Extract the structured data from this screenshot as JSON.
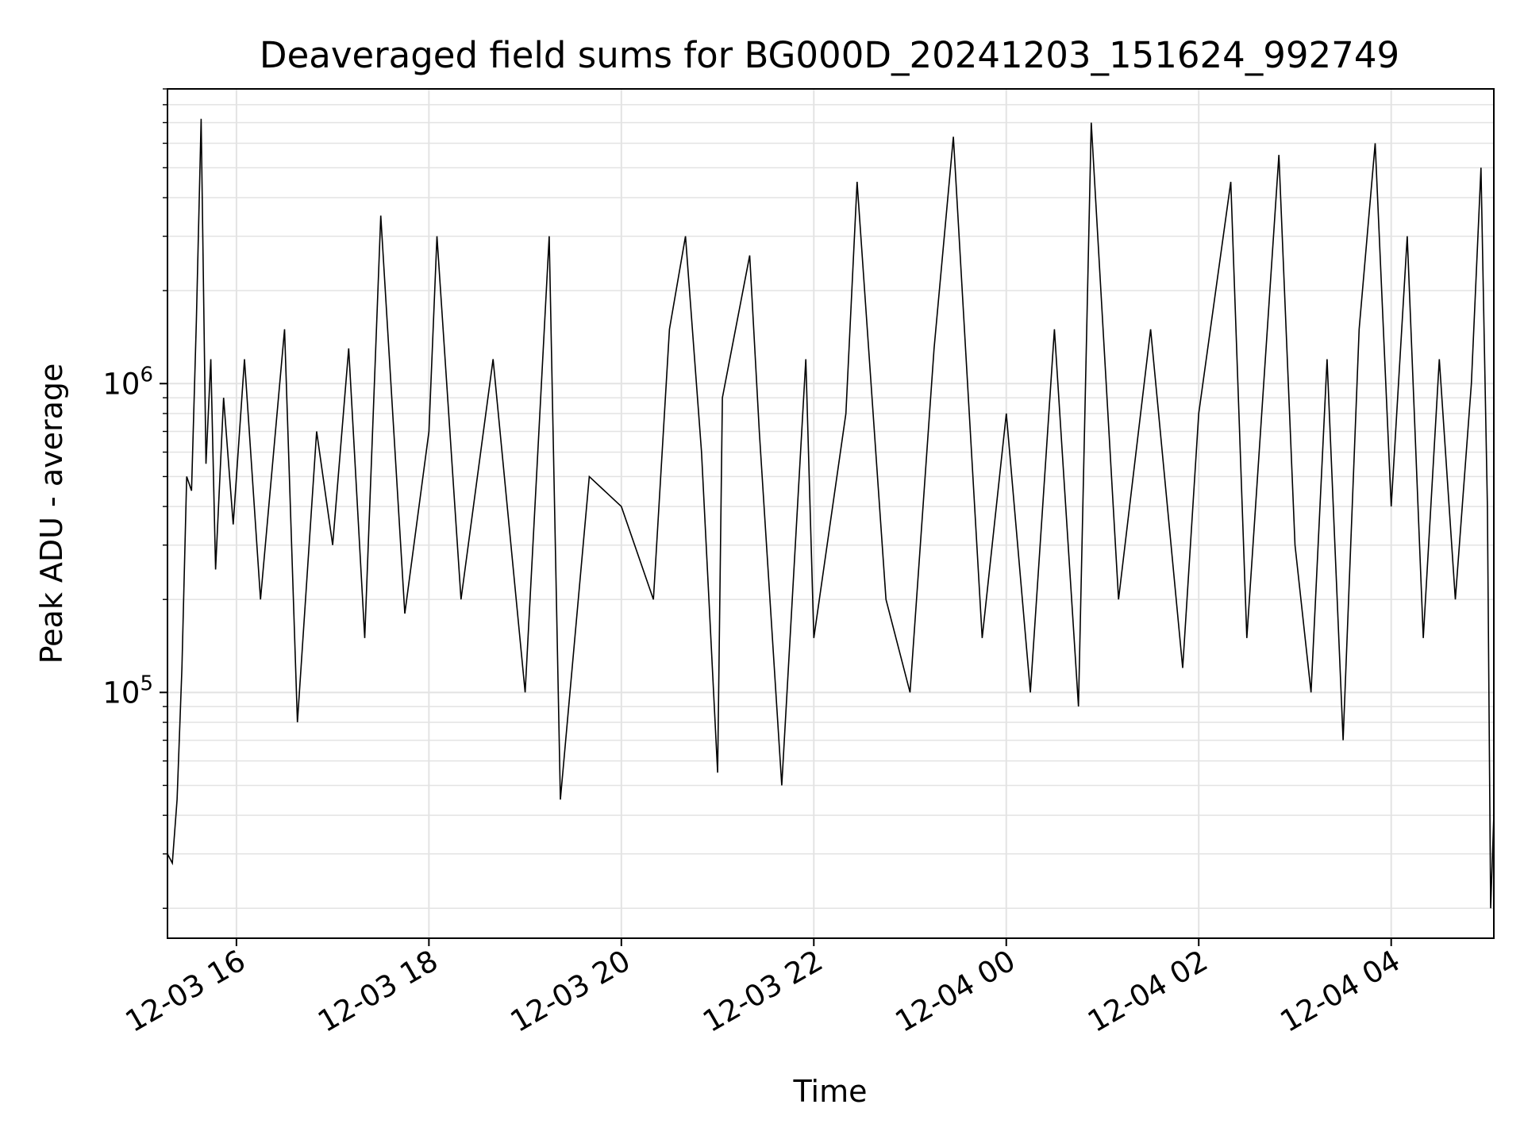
{
  "chart_data": {
    "type": "line",
    "title": "Deaveraged field sums for BG000D_20241203_151624_992749",
    "xlabel": "Time",
    "ylabel": "Peak ADU - average",
    "yscale": "log",
    "xlim": [
      "2024-12-03 15:17",
      "2024-12-04 05:04"
    ],
    "ylim": [
      16000,
      9000000
    ],
    "x_ticks": [
      {
        "label": "12-03 16",
        "time": "2024-12-03 16:00"
      },
      {
        "label": "12-03 18",
        "time": "2024-12-03 18:00"
      },
      {
        "label": "12-03 20",
        "time": "2024-12-03 20:00"
      },
      {
        "label": "12-03 22",
        "time": "2024-12-03 22:00"
      },
      {
        "label": "12-04 00",
        "time": "2024-12-04 00:00"
      },
      {
        "label": "12-04 02",
        "time": "2024-12-04 02:00"
      },
      {
        "label": "12-04 04",
        "time": "2024-12-04 04:00"
      }
    ],
    "y_ticks": [
      {
        "base": "10",
        "exp": "5",
        "value": 100000
      },
      {
        "base": "10",
        "exp": "6",
        "value": 1000000
      }
    ],
    "grid": true,
    "line_color": "#000000",
    "series": [
      {
        "x": [
          "2024-12-03 15:17",
          "2024-12-03 15:20",
          "2024-12-03 15:23",
          "2024-12-03 15:26",
          "2024-12-03 15:29",
          "2024-12-03 15:32",
          "2024-12-03 15:35",
          "2024-12-03 15:38",
          "2024-12-03 15:41",
          "2024-12-03 15:44",
          "2024-12-03 15:47",
          "2024-12-03 15:52",
          "2024-12-03 15:58",
          "2024-12-03 16:05",
          "2024-12-03 16:15",
          "2024-12-03 16:30",
          "2024-12-03 16:38",
          "2024-12-03 16:50",
          "2024-12-03 17:00",
          "2024-12-03 17:10",
          "2024-12-03 17:20",
          "2024-12-03 17:30",
          "2024-12-03 17:45",
          "2024-12-03 18:00",
          "2024-12-03 18:05",
          "2024-12-03 18:20",
          "2024-12-03 18:40",
          "2024-12-03 19:00",
          "2024-12-03 19:15",
          "2024-12-03 19:22",
          "2024-12-03 19:40",
          "2024-12-03 20:00",
          "2024-12-03 20:20",
          "2024-12-03 20:30",
          "2024-12-03 20:40",
          "2024-12-03 20:50",
          "2024-12-03 21:00",
          "2024-12-03 21:03",
          "2024-12-03 21:20",
          "2024-12-03 21:26",
          "2024-12-03 21:40",
          "2024-12-03 21:55",
          "2024-12-03 22:00",
          "2024-12-03 22:20",
          "2024-12-03 22:27",
          "2024-12-03 22:45",
          "2024-12-03 23:00",
          "2024-12-03 23:15",
          "2024-12-03 23:27",
          "2024-12-03 23:45",
          "2024-12-04 00:00",
          "2024-12-04 00:15",
          "2024-12-04 00:30",
          "2024-12-04 00:45",
          "2024-12-04 00:53",
          "2024-12-04 01:10",
          "2024-12-04 01:30",
          "2024-12-04 01:50",
          "2024-12-04 02:00",
          "2024-12-04 02:20",
          "2024-12-04 02:30",
          "2024-12-04 02:50",
          "2024-12-04 03:00",
          "2024-12-04 03:10",
          "2024-12-04 03:20",
          "2024-12-04 03:30",
          "2024-12-04 03:40",
          "2024-12-04 03:50",
          "2024-12-04 04:00",
          "2024-12-04 04:10",
          "2024-12-04 04:20",
          "2024-12-04 04:30",
          "2024-12-04 04:40",
          "2024-12-04 04:50",
          "2024-12-04 04:56",
          "2024-12-04 05:00",
          "2024-12-04 05:02",
          "2024-12-04 05:04"
        ],
        "values": [
          30000,
          28000,
          45000,
          120000,
          500000,
          450000,
          1600000,
          7200000,
          550000,
          1200000,
          250000,
          900000,
          350000,
          1200000,
          200000,
          1500000,
          80000,
          700000,
          300000,
          1300000,
          150000,
          3500000,
          180000,
          700000,
          3000000,
          200000,
          1200000,
          100000,
          3000000,
          45000,
          500000,
          400000,
          200000,
          1500000,
          3000000,
          600000,
          55000,
          900000,
          2600000,
          700000,
          50000,
          1200000,
          150000,
          800000,
          4500000,
          200000,
          100000,
          1300000,
          6300000,
          150000,
          800000,
          100000,
          1500000,
          90000,
          7000000,
          200000,
          1500000,
          120000,
          800000,
          4500000,
          150000,
          5500000,
          300000,
          100000,
          1200000,
          70000,
          1500000,
          6000000,
          400000,
          3000000,
          150000,
          1200000,
          200000,
          1000000,
          5000000,
          400000,
          20000,
          40000
        ]
      }
    ]
  }
}
